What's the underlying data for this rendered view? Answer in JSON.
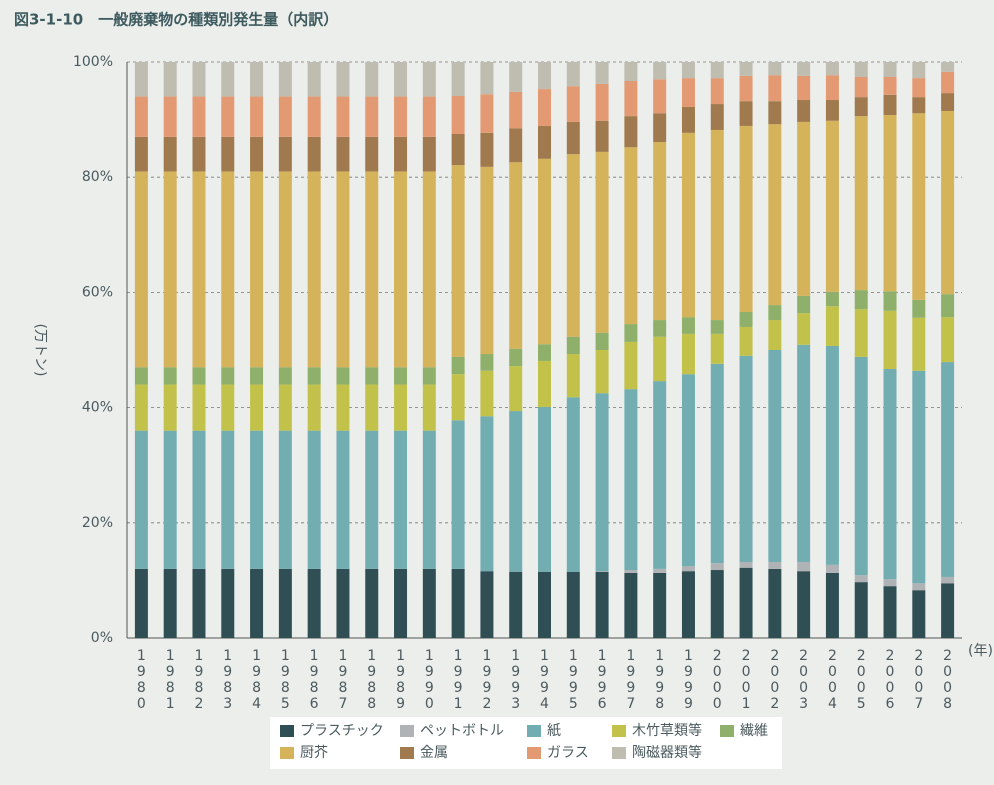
{
  "chart_data": {
    "type": "stacked_bar",
    "title": "図3-1-10　一般廃棄物の種類別発生量（内訳）",
    "y_label": "(万トン)",
    "x_label": "(年)",
    "categories": [
      "1980",
      "1981",
      "1982",
      "1983",
      "1984",
      "1985",
      "1986",
      "1987",
      "1988",
      "1989",
      "1990",
      "1991",
      "1992",
      "1993",
      "1994",
      "1995",
      "1996",
      "1997",
      "1998",
      "1999",
      "2000",
      "2001",
      "2002",
      "2003",
      "2004",
      "2005",
      "2006",
      "2007",
      "2008"
    ],
    "ylim": [
      0,
      100
    ],
    "yticks": [
      {
        "value": 0,
        "label": "0%"
      },
      {
        "value": 20,
        "label": "20%"
      },
      {
        "value": 40,
        "label": "40%"
      },
      {
        "value": 60,
        "label": "60%"
      },
      {
        "value": 80,
        "label": "80%"
      },
      {
        "value": 100,
        "label": "100%"
      }
    ],
    "grid": true,
    "series": [
      {
        "name": "プラスチック",
        "color": "#2f4f55",
        "values": [
          12,
          12,
          12,
          12,
          12,
          12,
          12,
          12,
          12,
          12,
          12,
          12,
          11.6,
          11.5,
          11.5,
          11.5,
          11.5,
          11.3,
          11.3,
          11.6,
          11.8,
          12.2,
          12.0,
          11.6,
          11.3,
          9.7,
          9.0,
          8.3,
          9.5
        ]
      },
      {
        "name": "ペットボトル",
        "color": "#b0b3b6",
        "values": [
          0,
          0,
          0,
          0,
          0,
          0,
          0,
          0,
          0,
          0,
          0,
          0,
          0,
          0,
          0,
          0,
          0.1,
          0.5,
          0.7,
          0.9,
          1.2,
          1.0,
          1.2,
          1.6,
          1.4,
          1.2,
          1.2,
          1.2,
          1.1
        ]
      },
      {
        "name": "紙",
        "color": "#72adb2",
        "values": [
          24,
          24,
          24,
          24,
          24,
          24,
          24,
          24,
          24,
          24,
          24,
          25.8,
          26.9,
          27.9,
          28.6,
          30.3,
          30.9,
          31.4,
          32.6,
          33.3,
          34.6,
          35.8,
          36.8,
          37.7,
          38.0,
          37.9,
          36.5,
          36.9,
          37.3
        ]
      },
      {
        "name": "木竹草類等",
        "color": "#c2c24a",
        "values": [
          8,
          8,
          8,
          8,
          8,
          8,
          8,
          8,
          8,
          8,
          8,
          8,
          7.9,
          7.8,
          8.0,
          7.5,
          7.5,
          8.2,
          7.7,
          7.0,
          5.2,
          5.0,
          5.2,
          5.5,
          6.9,
          8.3,
          10.1,
          9.2,
          7.8
        ]
      },
      {
        "name": "繊維",
        "color": "#8fb06a",
        "values": [
          3,
          3,
          3,
          3,
          3,
          3,
          3,
          3,
          3,
          3,
          3,
          3,
          2.9,
          3.0,
          2.9,
          3.0,
          3.0,
          3.1,
          2.9,
          2.9,
          2.4,
          2.6,
          2.6,
          3.0,
          2.5,
          3.3,
          3.4,
          3.1,
          4.0
        ]
      },
      {
        "name": "厨芥",
        "color": "#d4b35a",
        "values": [
          34,
          34,
          34,
          34,
          34,
          34,
          34,
          34,
          34,
          34,
          34,
          33.3,
          32.5,
          32.4,
          32.2,
          31.7,
          31.4,
          30.7,
          30.9,
          32.0,
          33.0,
          32.3,
          31.4,
          30.2,
          29.7,
          30.2,
          30.6,
          32.4,
          31.8
        ]
      },
      {
        "name": "金属",
        "color": "#a07a4e",
        "values": [
          6,
          6,
          6,
          6,
          6,
          6,
          6,
          6,
          6,
          6,
          6,
          5.4,
          5.9,
          5.9,
          5.7,
          5.6,
          5.4,
          5.4,
          5.0,
          4.5,
          4.5,
          4.3,
          4.0,
          3.8,
          3.6,
          3.3,
          3.5,
          2.8,
          3.1
        ]
      },
      {
        "name": "ガラス",
        "color": "#e39a72",
        "values": [
          7,
          7,
          7,
          7,
          7,
          7,
          7,
          7,
          7,
          7,
          7,
          6.6,
          6.7,
          6.3,
          6.4,
          6.2,
          6.4,
          6.1,
          5.9,
          5.0,
          4.5,
          4.4,
          4.5,
          4.2,
          4.3,
          3.5,
          3.1,
          3.3,
          3.7
        ]
      },
      {
        "name": "陶磁器類等",
        "color": "#bfbcb0",
        "values": [
          6,
          6,
          6,
          6,
          6,
          6,
          6,
          6,
          6,
          6,
          6,
          5.9,
          5.6,
          5.2,
          4.7,
          4.2,
          3.8,
          3.3,
          3.0,
          2.8,
          2.8,
          2.4,
          2.3,
          2.4,
          2.3,
          2.6,
          2.6,
          2.8,
          1.7
        ]
      }
    ]
  }
}
